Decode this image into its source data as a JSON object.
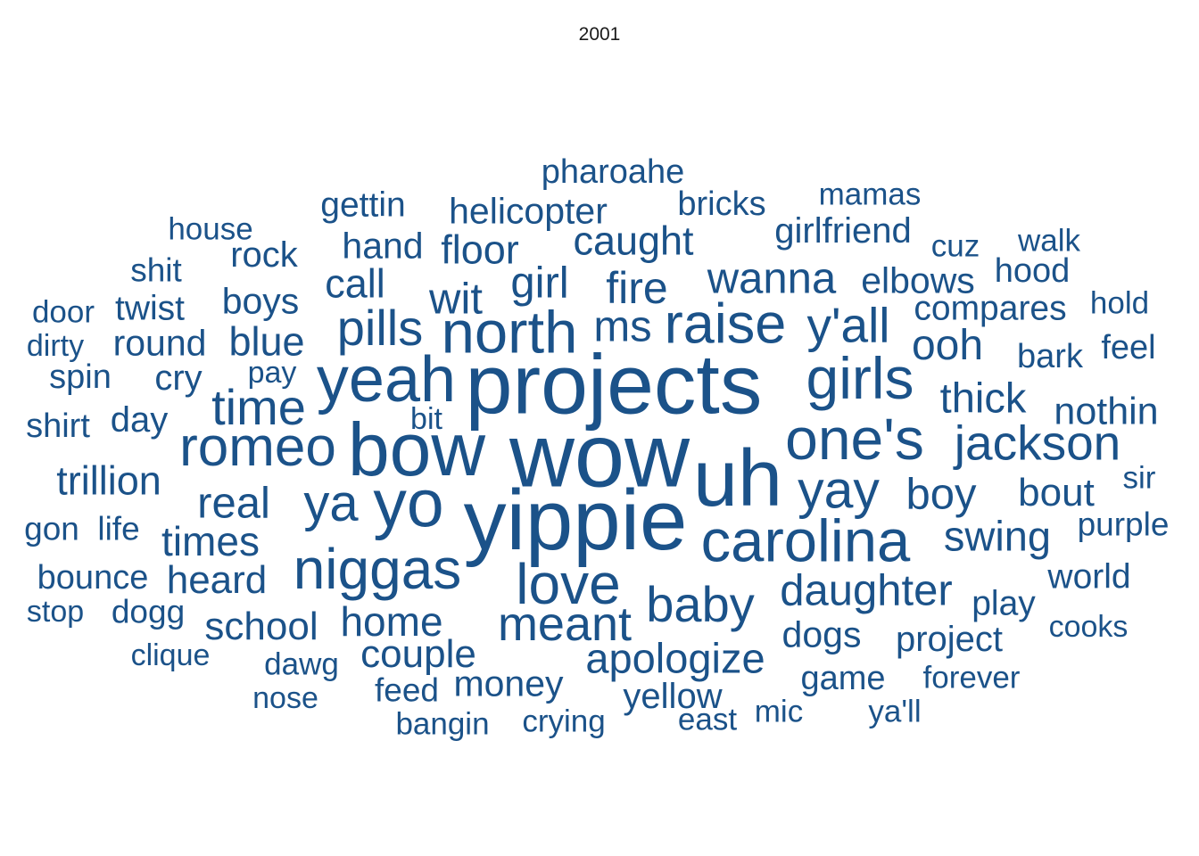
{
  "title": "2001",
  "color": "#1b5289",
  "words": [
    {
      "text": "wow",
      "w": 9
    },
    {
      "text": "projects",
      "w": 8.5
    },
    {
      "text": "yippie",
      "w": 8.6
    },
    {
      "text": "uh",
      "w": 8
    },
    {
      "text": "bow",
      "w": 7.5
    },
    {
      "text": "yo",
      "w": 6.7
    },
    {
      "text": "yeah",
      "w": 6.4
    },
    {
      "text": "north",
      "w": 6
    },
    {
      "text": "carolina",
      "w": 6
    },
    {
      "text": "one's",
      "w": 5.9
    },
    {
      "text": "girls",
      "w": 5.9
    },
    {
      "text": "niggas",
      "w": 5.7
    },
    {
      "text": "love",
      "w": 5.7
    },
    {
      "text": "raise",
      "w": 5.6
    },
    {
      "text": "romeo",
      "w": 5.5
    },
    {
      "text": "yay",
      "w": 5.3
    },
    {
      "text": "ya",
      "w": 5.2
    },
    {
      "text": "jackson",
      "w": 4.9
    },
    {
      "text": "baby",
      "w": 5
    },
    {
      "text": "pills",
      "w": 5
    },
    {
      "text": "y'all",
      "w": 4.9
    },
    {
      "text": "time",
      "w": 5
    },
    {
      "text": "meant",
      "w": 4.8
    },
    {
      "text": "daughter",
      "w": 4.4
    },
    {
      "text": "wit",
      "w": 4.4
    },
    {
      "text": "ms",
      "w": 4.4
    },
    {
      "text": "fire",
      "w": 4.5
    },
    {
      "text": "girl",
      "w": 4.4
    },
    {
      "text": "ooh",
      "w": 4.3
    },
    {
      "text": "wanna",
      "w": 4.4
    },
    {
      "text": "boy",
      "w": 4.4
    },
    {
      "text": "real",
      "w": 4.4
    },
    {
      "text": "apologize",
      "w": 4.2
    },
    {
      "text": "thick",
      "w": 4.2
    },
    {
      "text": "swing",
      "w": 4.2
    },
    {
      "text": "times",
      "w": 4.1
    },
    {
      "text": "home",
      "w": 4.1
    },
    {
      "text": "nothin",
      "w": 3.8
    },
    {
      "text": "bout",
      "w": 3.9
    },
    {
      "text": "caught",
      "w": 4
    },
    {
      "text": "blue",
      "w": 4
    },
    {
      "text": "trillion",
      "w": 4
    },
    {
      "text": "floor",
      "w": 4
    },
    {
      "text": "couple",
      "w": 3.9
    },
    {
      "text": "heard",
      "w": 3.9
    },
    {
      "text": "call",
      "w": 4
    },
    {
      "text": "school",
      "w": 3.9
    },
    {
      "text": "round",
      "w": 3.7
    },
    {
      "text": "boys",
      "w": 3.7
    },
    {
      "text": "elbows",
      "w": 3.7
    },
    {
      "text": "hand",
      "w": 3.7
    },
    {
      "text": "money",
      "w": 3.7
    },
    {
      "text": "helicopter",
      "w": 3.7
    },
    {
      "text": "dogs",
      "w": 3.7
    },
    {
      "text": "project",
      "w": 3.6
    },
    {
      "text": "day",
      "w": 3.6
    },
    {
      "text": "cry",
      "w": 3.6
    },
    {
      "text": "compares",
      "w": 3.5
    },
    {
      "text": "pharoahe",
      "w": 3.4
    },
    {
      "text": "rock",
      "w": 3.6
    },
    {
      "text": "yellow",
      "w": 3.6
    },
    {
      "text": "girlfriend",
      "w": 3.6
    },
    {
      "text": "gettin",
      "w": 3.5
    },
    {
      "text": "twist",
      "w": 3.5
    },
    {
      "text": "play",
      "w": 3.5
    },
    {
      "text": "world",
      "w": 3.5
    },
    {
      "text": "bark",
      "w": 3.4
    },
    {
      "text": "feel",
      "w": 3.4
    },
    {
      "text": "bounce",
      "w": 3.4
    },
    {
      "text": "game",
      "w": 3.4
    },
    {
      "text": "hood",
      "w": 3.4
    },
    {
      "text": "shirt",
      "w": 3.4
    },
    {
      "text": "bricks",
      "w": 3.4
    },
    {
      "text": "spin",
      "w": 3.4
    },
    {
      "text": "purple",
      "w": 3.3
    },
    {
      "text": "feed",
      "w": 3.3
    },
    {
      "text": "dogg",
      "w": 3.3
    },
    {
      "text": "shit",
      "w": 3.3
    },
    {
      "text": "gon",
      "w": 3.3
    },
    {
      "text": "life",
      "w": 3.3
    },
    {
      "text": "walk",
      "w": 3.1
    },
    {
      "text": "sir",
      "w": 3.1
    },
    {
      "text": "forever",
      "w": 3.1
    },
    {
      "text": "crying",
      "w": 3.1
    },
    {
      "text": "bangin",
      "w": 3.1
    },
    {
      "text": "mamas",
      "w": 3.1
    },
    {
      "text": "cuz",
      "w": 3.1
    },
    {
      "text": "door",
      "w": 3.1
    },
    {
      "text": "hold",
      "w": 3.1
    },
    {
      "text": "dawg",
      "w": 3.1
    },
    {
      "text": "house",
      "w": 3.1
    },
    {
      "text": "mic",
      "w": 3.1
    },
    {
      "text": "east",
      "w": 3.1
    },
    {
      "text": "ya'll",
      "w": 3.1
    },
    {
      "text": "clique",
      "w": 3
    },
    {
      "text": "cooks",
      "w": 3
    },
    {
      "text": "nose",
      "w": 3
    },
    {
      "text": "stop",
      "w": 3
    },
    {
      "text": "dirty",
      "w": 3
    },
    {
      "text": "bit",
      "w": 3
    },
    {
      "text": "pay",
      "w": 3
    }
  ]
}
